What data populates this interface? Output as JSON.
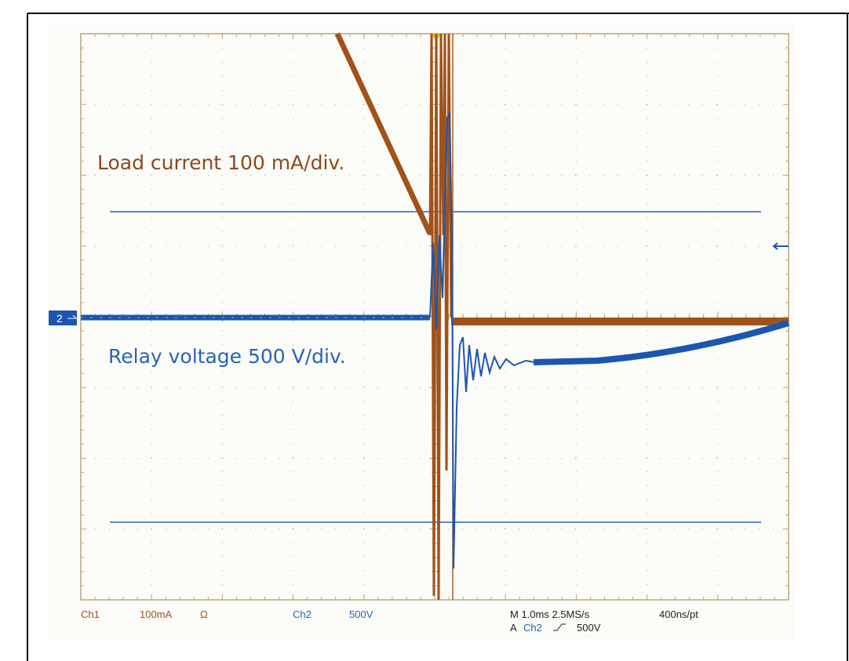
{
  "annotations": {
    "load": "Load current 100 mA/div.",
    "relay": "Relay voltage 500 V/div."
  },
  "markers": {
    "ch2": "2"
  },
  "readout": {
    "ch1": "Ch1",
    "ch1_scale": "100mA",
    "ch1_coupling": "Ω",
    "ch2": "Ch2",
    "ch2_scale": "500V",
    "timebase": "M 1.0ms 2.5MS/s",
    "record": "400ns/pt",
    "trigger_mode": "A",
    "trigger_source": "Ch2",
    "trigger_level": "500V"
  }
}
